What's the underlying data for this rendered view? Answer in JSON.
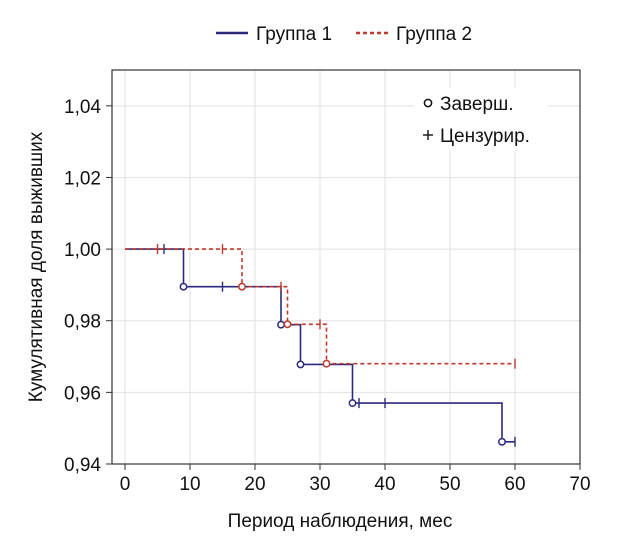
{
  "chart_data": {
    "type": "line",
    "title": "",
    "xlabel": "Период наблюдения, мес",
    "ylabel": "Кумулятивная доля выживших",
    "xlim": [
      -2,
      70
    ],
    "ylim": [
      0.94,
      1.05
    ],
    "x_ticks": [
      0,
      10,
      20,
      30,
      40,
      50,
      60,
      70
    ],
    "x_tick_labels": [
      "0",
      "10",
      "20",
      "30",
      "40",
      "50",
      "60",
      "70"
    ],
    "y_ticks": [
      0.94,
      0.96,
      0.98,
      1.0,
      1.02,
      1.04
    ],
    "y_tick_labels": [
      "0,94",
      "0,96",
      "0,98",
      "1,00",
      "1,02",
      "1,04"
    ],
    "grid": true,
    "legend_position": "top-center",
    "series": [
      {
        "name": "Группа 1",
        "color": "#2b2a7c",
        "dash": "solid",
        "steps": [
          [
            0,
            1.0
          ],
          [
            9,
            0.9895
          ],
          [
            24,
            0.9789
          ],
          [
            27,
            0.9678
          ],
          [
            35,
            0.957
          ],
          [
            58,
            0.9462
          ],
          [
            60,
            0.9462
          ]
        ],
        "completed": [
          [
            9,
            0.9895
          ],
          [
            24,
            0.9789
          ],
          [
            27,
            0.9678
          ],
          [
            35,
            0.957
          ],
          [
            58,
            0.9462
          ]
        ],
        "censored": [
          [
            6,
            1.0
          ],
          [
            15,
            0.9895
          ],
          [
            36,
            0.957
          ],
          [
            40,
            0.957
          ],
          [
            60,
            0.9462
          ]
        ]
      },
      {
        "name": "Группа 2",
        "color": "#c0392b",
        "dash": "dashed",
        "steps": [
          [
            0,
            1.0
          ],
          [
            18,
            0.9895
          ],
          [
            25,
            0.979
          ],
          [
            31,
            0.968
          ],
          [
            60,
            0.968
          ]
        ],
        "completed": [
          [
            18,
            0.9895
          ],
          [
            25,
            0.979
          ],
          [
            31,
            0.968
          ]
        ],
        "censored": [
          [
            5,
            1.0
          ],
          [
            15,
            1.0
          ],
          [
            24,
            0.9895
          ],
          [
            30,
            0.979
          ],
          [
            60,
            0.968
          ]
        ]
      }
    ],
    "marker_legend": [
      {
        "symbol": "o",
        "label": "Заверш."
      },
      {
        "symbol": "+",
        "label": "Цензурир."
      }
    ]
  }
}
